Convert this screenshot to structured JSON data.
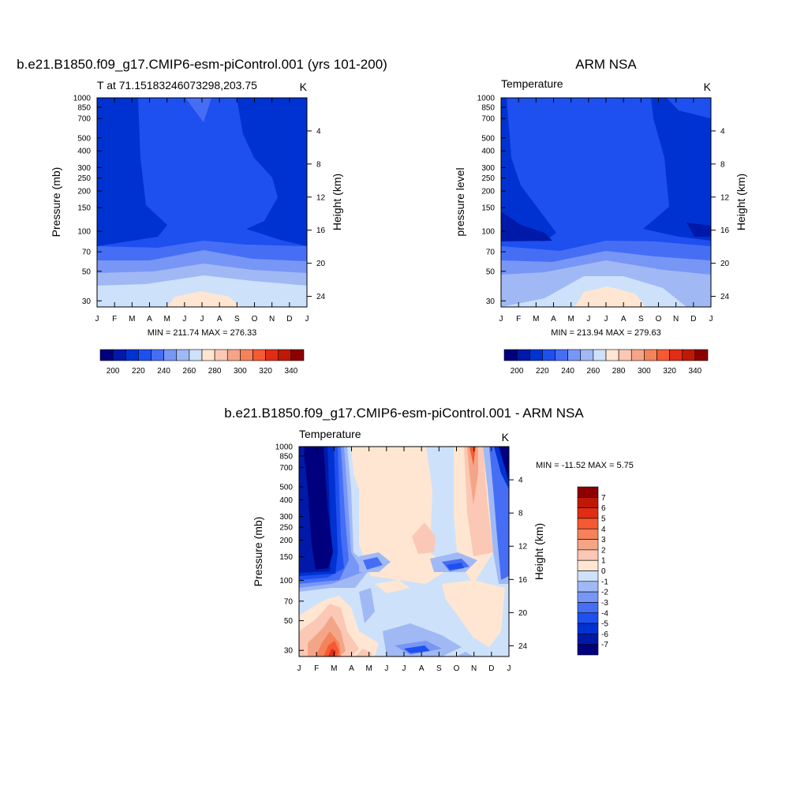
{
  "panels": [
    {
      "title": "b.e21.B1850.f09_g17.CMIP6-esm-piControl.001 (yrs 101-200)",
      "subtitle": "T at 71.15183246073298,203.75",
      "units": "K",
      "ylabel": "Pressure (mb)",
      "ylabel_right": "Height (km)",
      "stats": "MIN = 211.74 MAX = 276.33"
    },
    {
      "title": "ARM NSA",
      "subtitle": "Temperature",
      "units": "K",
      "ylabel": "pressure level",
      "ylabel_right": "Height (km)",
      "stats": "MIN = 213.94 MAX = 279.63"
    },
    {
      "title": "b.e21.B1850.f09_g17.CMIP6-esm-piControl.001 - ARM NSA",
      "subtitle": "Temperature",
      "units": "K",
      "ylabel": "Pressure (mb)",
      "ylabel_right": "Height (km)",
      "stats": "MIN = -11.52 MAX =   5.75"
    }
  ],
  "chart_data": [
    {
      "type": "contour",
      "title": "b.e21.B1850.f09_g17.CMIP6-esm-piControl.001 (yrs 101-200)",
      "x_ticks": [
        "J",
        "F",
        "M",
        "A",
        "M",
        "J",
        "J",
        "A",
        "S",
        "O",
        "N",
        "D",
        "J"
      ],
      "y_ticks": [
        30,
        50,
        70,
        100,
        150,
        200,
        250,
        300,
        400,
        500,
        700,
        850,
        1000
      ],
      "y2_ticks": [
        24,
        20,
        16,
        12,
        8,
        4
      ],
      "colorbar_labels": [
        200,
        220,
        240,
        260,
        280,
        300,
        320,
        340
      ],
      "colorbar_colors": [
        "#00007f",
        "#0019a8",
        "#0032d2",
        "#1e50f0",
        "#466ef5",
        "#7896f5",
        "#a0b9f5",
        "#cde1fa",
        "#ffe6d2",
        "#fac8b4",
        "#f5a587",
        "#f5825a",
        "#f55a32",
        "#e12d14",
        "#be1905",
        "#8c0000"
      ],
      "min": 211.74,
      "max": 276.33
    },
    {
      "type": "contour",
      "title": "ARM NSA",
      "x_ticks": [
        "J",
        "F",
        "M",
        "A",
        "M",
        "J",
        "J",
        "A",
        "S",
        "O",
        "N",
        "D",
        "J"
      ],
      "y_ticks": [
        30,
        50,
        70,
        100,
        150,
        200,
        250,
        300,
        400,
        500,
        700,
        850,
        1000
      ],
      "y2_ticks": [
        24,
        20,
        16,
        12,
        8,
        4
      ],
      "colorbar_labels": [
        200,
        220,
        240,
        260,
        280,
        300,
        320,
        340
      ],
      "min": 213.94,
      "max": 279.63
    },
    {
      "type": "contour",
      "title": "b.e21.B1850.f09_g17.CMIP6-esm-piControl.001 - ARM NSA",
      "x_ticks": [
        "J",
        "F",
        "M",
        "A",
        "M",
        "J",
        "J",
        "A",
        "S",
        "O",
        "N",
        "D",
        "J"
      ],
      "y_ticks": [
        30,
        50,
        70,
        100,
        150,
        200,
        250,
        300,
        400,
        500,
        700,
        850,
        1000
      ],
      "y2_ticks": [
        24,
        20,
        16,
        12,
        8,
        4
      ],
      "colorbar_labels": [
        7,
        6,
        5,
        4,
        3,
        2,
        1,
        0,
        -1,
        -2,
        -3,
        -4,
        -5,
        -6,
        -7
      ],
      "colorbar_colors": [
        "#8c0000",
        "#be1905",
        "#e12d14",
        "#f55a32",
        "#f5825a",
        "#f5a587",
        "#fac8b4",
        "#ffe6d2",
        "#cde1fa",
        "#a0b9f5",
        "#7896f5",
        "#466ef5",
        "#1e50f0",
        "#0032d2",
        "#0019a8",
        "#00007f"
      ],
      "min": -11.52,
      "max": 5.75
    }
  ]
}
